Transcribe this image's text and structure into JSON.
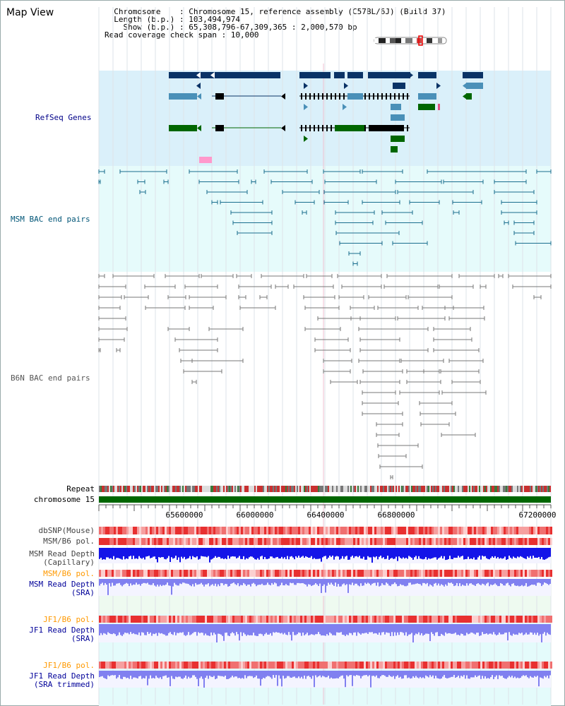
{
  "header": {
    "title": "Map View",
    "info_lines": [
      "  Chromosome    : Chromosome 15, reference assembly (C57BL/6J) (Build 37)",
      "  Length (b.p.) : 103,494,974",
      "    Show (b.p.) : 65,308,796-67,309,365 : 2,000,570 bp",
      "Read coverage check span : 10,000"
    ]
  },
  "tracks": {
    "refseq": "RefSeq Genes",
    "msm_bac": "MSM BAC end pairs",
    "b6n_bac": "B6N BAC end pairs",
    "repeat": "Repeat",
    "chromosome": "chromosome 15",
    "dbsnp": "dbSNP(Mouse)",
    "msm_b6_pol_1": "MSM/B6 pol.",
    "msm_depth_cap_1": "MSM Read Depth",
    "msm_depth_cap_2": "(Capillary)",
    "msm_b6_pol_2": "MSM/B6 pol.",
    "msm_depth_sra_1": "MSM Read Depth",
    "msm_depth_sra_2": "(SRA)",
    "jf1_b6_pol_1": "JF1/B6 pol.",
    "jf1_depth_sra_1": "JF1 Read Depth",
    "jf1_depth_sra_2": "(SRA)",
    "jf1_b6_pol_2": "JF1/B6 pol.",
    "jf1_depth_trim_1": "JF1 Read Depth",
    "jf1_depth_trim_2": "(SRA trimmed)"
  },
  "axis": {
    "ticks": [
      "65600000",
      "66000000",
      "66400000",
      "66800000",
      "67200000"
    ]
  },
  "colors": {
    "refseq_bg": "#daf0fa",
    "msm_bg": "#e6fbfb",
    "depth_blue": "#1010e0",
    "depth_light": "#8080f0",
    "pol_red": "#e83030",
    "chrom_green": "#006600",
    "msm_label": "#005577",
    "b6n_label": "#555555",
    "refseq_label": "#000088",
    "orange_label": "#ff9900",
    "navy_label": "#000099"
  }
}
